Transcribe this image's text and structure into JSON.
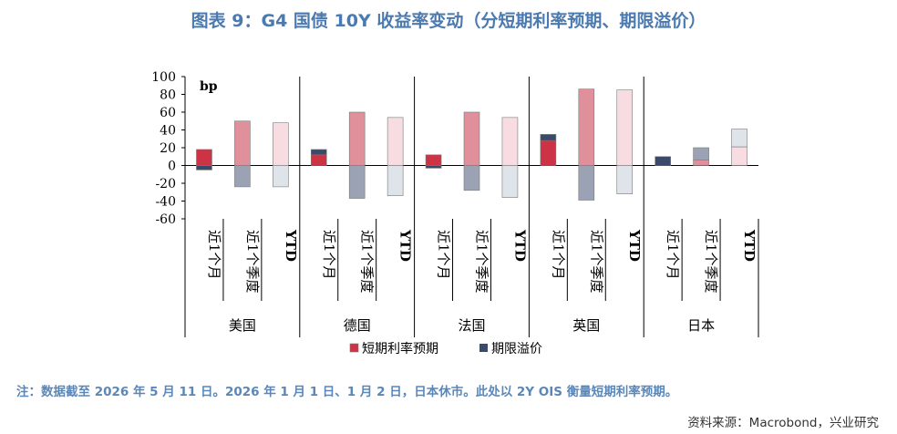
{
  "header": {
    "title": "图表 9：G4 国债 10Y 收益率变动（分短期利率预期、期限溢价）"
  },
  "footer": {
    "note": "注：数据截至 2026 年 5 月 11 日。2026 年 1 月 1 日、1 月 2 日，日本休市。此处以 2Y OIS 衡量短期利率预期。",
    "source": "资料来源：Macrobond，兴业研究"
  },
  "colors": {
    "rate_month": "#cc3344",
    "rate_quarter": "#e0909a",
    "rate_ytd": "#f7dde2",
    "term_month": "#3b4a6b",
    "term_quarter": "#9aa2b3",
    "term_ytd": "#dfe3ea"
  },
  "chart_data": {
    "type": "bar",
    "stacked": true,
    "unit_label": "bp",
    "ylim": [
      -60,
      100
    ],
    "yticks": [
      100,
      80,
      60,
      40,
      20,
      0,
      -20,
      -40,
      -60
    ],
    "groups": [
      "美国",
      "德国",
      "法国",
      "英国",
      "日本"
    ],
    "periods": [
      "近1个月",
      "近1个季度",
      "YTD"
    ],
    "legend": [
      "短期利率预期",
      "期限溢价"
    ],
    "legend_position": "bottom",
    "series": [
      {
        "name": "短期利率预期",
        "values": [
          [
            18,
            50,
            48
          ],
          [
            12,
            60,
            54
          ],
          [
            12,
            60,
            54
          ],
          [
            28,
            86,
            85
          ],
          [
            0,
            6,
            21
          ]
        ]
      },
      {
        "name": "期限溢价",
        "values": [
          [
            -5,
            -24,
            -24
          ],
          [
            6,
            -37,
            -34
          ],
          [
            -3,
            -28,
            -36
          ],
          [
            7,
            -39,
            -32
          ],
          [
            10,
            14,
            20
          ]
        ]
      }
    ]
  }
}
